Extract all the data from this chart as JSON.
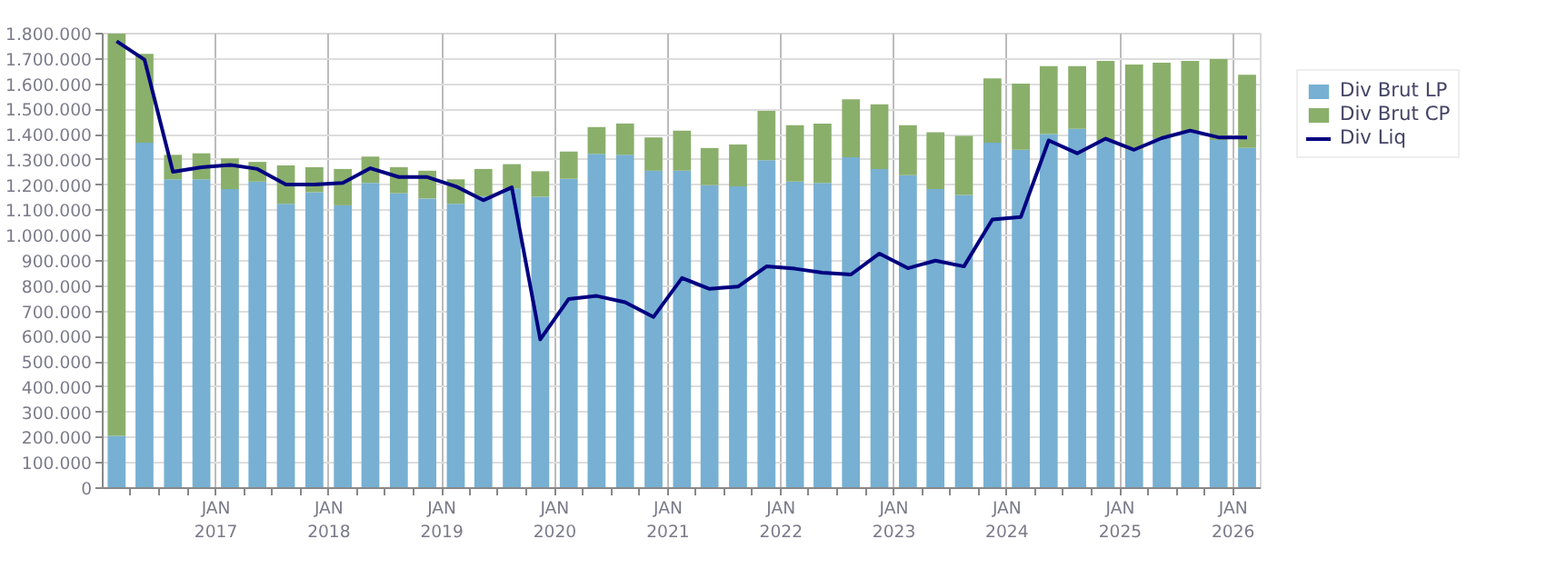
{
  "chart_data": {
    "type": "bar",
    "stacked": true,
    "grid": true,
    "legend": "right",
    "x": [
      "2016-02-15",
      "2016-05-15",
      "2016-08-15",
      "2016-11-15",
      "2017-02-15",
      "2017-05-15",
      "2017-08-15",
      "2017-11-15",
      "2018-02-15",
      "2018-05-15",
      "2018-08-15",
      "2018-11-15",
      "2019-02-15",
      "2019-05-15",
      "2019-08-15",
      "2019-11-15",
      "2020-02-15",
      "2020-05-15",
      "2020-08-15",
      "2020-11-15",
      "2021-02-15",
      "2021-05-15",
      "2021-08-15",
      "2021-11-15",
      "2022-02-15",
      "2022-05-15",
      "2022-08-15",
      "2022-11-15",
      "2023-02-15",
      "2023-05-15",
      "2023-08-15",
      "2023-11-15",
      "2024-02-15",
      "2024-05-15",
      "2024-08-15",
      "2024-11-15",
      "2025-02-15",
      "2025-05-15",
      "2025-08-15",
      "2025-11-15",
      "2026-02-15"
    ],
    "xlim": [
      "2016-01-01",
      "2026-03-31"
    ],
    "xticks": [
      {
        "value": "2016-04-01",
        "label": null
      },
      {
        "value": "2016-07-01",
        "label": null
      },
      {
        "value": "2016-10-01",
        "label": null
      },
      {
        "value": "2017-01-01",
        "label": "JAN\n2017"
      },
      {
        "value": "2017-04-01",
        "label": null
      },
      {
        "value": "2017-07-01",
        "label": null
      },
      {
        "value": "2017-10-01",
        "label": null
      },
      {
        "value": "2018-01-01",
        "label": "JAN\n2018"
      },
      {
        "value": "2018-04-01",
        "label": null
      },
      {
        "value": "2018-07-01",
        "label": null
      },
      {
        "value": "2018-10-01",
        "label": null
      },
      {
        "value": "2019-01-01",
        "label": "JAN\n2019"
      },
      {
        "value": "2019-04-01",
        "label": null
      },
      {
        "value": "2019-07-01",
        "label": null
      },
      {
        "value": "2019-10-01",
        "label": null
      },
      {
        "value": "2020-01-01",
        "label": "JAN\n2020"
      },
      {
        "value": "2020-04-01",
        "label": null
      },
      {
        "value": "2020-07-01",
        "label": null
      },
      {
        "value": "2020-10-01",
        "label": null
      },
      {
        "value": "2021-01-01",
        "label": "JAN\n2021"
      },
      {
        "value": "2021-04-01",
        "label": null
      },
      {
        "value": "2021-07-01",
        "label": null
      },
      {
        "value": "2021-10-01",
        "label": null
      },
      {
        "value": "2022-01-01",
        "label": "JAN\n2022"
      },
      {
        "value": "2022-04-01",
        "label": null
      },
      {
        "value": "2022-07-01",
        "label": null
      },
      {
        "value": "2022-10-01",
        "label": null
      },
      {
        "value": "2023-01-01",
        "label": "JAN\n2023"
      },
      {
        "value": "2023-04-01",
        "label": null
      },
      {
        "value": "2023-07-01",
        "label": null
      },
      {
        "value": "2023-10-01",
        "label": null
      },
      {
        "value": "2024-01-01",
        "label": "JAN\n2024"
      },
      {
        "value": "2024-04-01",
        "label": null
      },
      {
        "value": "2024-07-01",
        "label": null
      },
      {
        "value": "2024-10-01",
        "label": null
      },
      {
        "value": "2025-01-01",
        "label": "JAN\n2025"
      },
      {
        "value": "2025-04-01",
        "label": null
      },
      {
        "value": "2025-07-01",
        "label": null
      },
      {
        "value": "2025-10-01",
        "label": null
      },
      {
        "value": "2026-01-01",
        "label": "JAN\n2026"
      }
    ],
    "ylim": [
      0,
      1800000
    ],
    "yticks": [
      0,
      {
        "value": 100000,
        "label": "100.000"
      },
      {
        "value": 200000,
        "label": "200.000"
      },
      {
        "value": 300000,
        "label": "300.000"
      },
      {
        "value": 400000,
        "label": "400.000"
      },
      {
        "value": 500000,
        "label": "500.000"
      },
      {
        "value": 600000,
        "label": "600.000"
      },
      {
        "value": 700000,
        "label": "700.000"
      },
      {
        "value": 800000,
        "label": "800.000"
      },
      {
        "value": 900000,
        "label": "900.000"
      },
      {
        "value": 1000000,
        "label": "1.000.000"
      },
      {
        "value": 1100000,
        "label": "1.100.000"
      },
      {
        "value": 1200000,
        "label": "1.200.000"
      },
      {
        "value": 1300000,
        "label": "1.300.000"
      },
      {
        "value": 1400000,
        "label": "1.400.000"
      },
      {
        "value": 1500000,
        "label": "1.500.000"
      },
      {
        "value": 1600000,
        "label": "1.600.000"
      },
      {
        "value": 1700000,
        "label": "1.700.000"
      },
      {
        "value": 1800000,
        "label": "1.800.000"
      }
    ],
    "series": [
      {
        "name": "Div Brut LP",
        "color": "#77b0d2",
        "values": [
          207000,
          1368000,
          1223000,
          1223000,
          1184000,
          1214000,
          1126000,
          1172000,
          1120000,
          1209000,
          1168000,
          1147000,
          1126000,
          1156000,
          1186000,
          1154000,
          1225000,
          1324000,
          1320000,
          1257000,
          1257000,
          1200000,
          1195000,
          1299000,
          1214000,
          1209000,
          1310000,
          1264000,
          1239000,
          1184000,
          1161000,
          1368000,
          1340000,
          1402000,
          1423000,
          1379000,
          1340000,
          1386000,
          1409000,
          1379000,
          1347000
        ]
      },
      {
        "name": "Div Brut CP",
        "color": "#8aaf6b",
        "values": [
          1593000,
          352000,
          97000,
          103000,
          122000,
          78000,
          152000,
          99000,
          144000,
          104000,
          103000,
          110000,
          97000,
          108000,
          97000,
          101000,
          108000,
          106000,
          124000,
          132000,
          159000,
          147000,
          166000,
          195000,
          223000,
          235000,
          230000,
          256000,
          198000,
          225000,
          234000,
          255000,
          262000,
          269000,
          248000,
          313000,
          338000,
          299000,
          283000,
          320000,
          290000
        ]
      },
      {
        "name": "Div Liq",
        "type": "line",
        "color": "#000080",
        "values": [
          1770000,
          1697000,
          1253000,
          1271000,
          1280000,
          1264000,
          1202000,
          1202000,
          1209000,
          1267000,
          1232000,
          1232000,
          1195000,
          1140000,
          1191000,
          589000,
          749000,
          761000,
          736000,
          678000,
          832000,
          789000,
          798000,
          878000,
          869000,
          853000,
          846000,
          929000,
          871000,
          901000,
          878000,
          1064000,
          1074000,
          1377000,
          1326000,
          1384000,
          1340000,
          1386000,
          1416000,
          1389000,
          1389000
        ]
      }
    ]
  }
}
